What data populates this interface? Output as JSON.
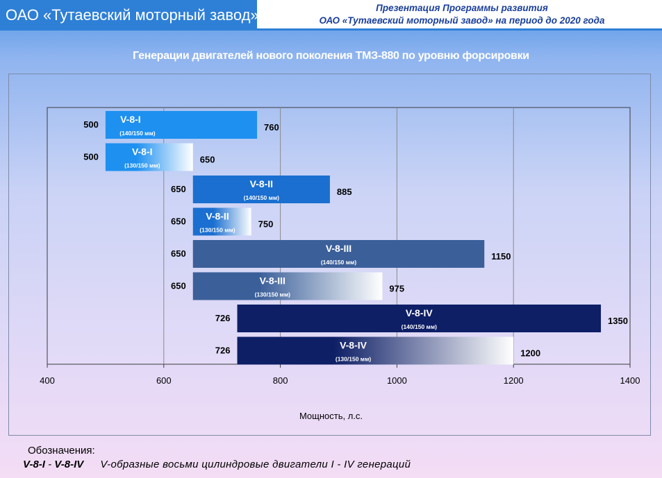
{
  "header": {
    "company": "ОАО «Тутаевский моторный завод»",
    "presentation_line1": "Презентация Программы развития",
    "presentation_line2": "ОАО «Тутаевский моторный завод» на период до 2020 года"
  },
  "chart_data": {
    "type": "bar",
    "orientation": "horizontal",
    "title": "Генерации двигателей нового поколения ТМЗ-880 по уровню форсировки",
    "xlabel": "Мощность, л.с.",
    "xlim": [
      400,
      1400
    ],
    "xticks": [
      400,
      600,
      800,
      1000,
      1200,
      1400
    ],
    "grid": "vertical",
    "bars": [
      {
        "name": "V-8-I",
        "sub": "(140/150 мм)",
        "start": 500,
        "end": 760,
        "start_label": "500",
        "end_label": "760",
        "color": "#1e90f0",
        "fade": false
      },
      {
        "name": "V-8-I",
        "sub": "(130/150 мм)",
        "start": 500,
        "end": 650,
        "start_label": "500",
        "end_label": "650",
        "color": "#1e90f0",
        "fade": true
      },
      {
        "name": "V-8-II",
        "sub": "(140/150 мм)",
        "start": 650,
        "end": 885,
        "start_label": "650",
        "end_label": "885",
        "color": "#1a6fd0",
        "fade": false
      },
      {
        "name": "V-8-II",
        "sub": "(130/150 мм)",
        "start": 650,
        "end": 750,
        "start_label": "650",
        "end_label": "750",
        "color": "#1a6fd0",
        "fade": true
      },
      {
        "name": "V-8-III",
        "sub": "(140/150 мм)",
        "start": 650,
        "end": 1150,
        "start_label": "650",
        "end_label": "1150",
        "color": "#3b5f99",
        "fade": false
      },
      {
        "name": "V-8-III",
        "sub": "(130/150 мм)",
        "start": 650,
        "end": 975,
        "start_label": "650",
        "end_label": "975",
        "color": "#3b5f99",
        "fade": true
      },
      {
        "name": "V-8-IV",
        "sub": "(140/150 мм)",
        "start": 726,
        "end": 1350,
        "start_label": "726",
        "end_label": "1350",
        "color": "#0e1f66",
        "fade": false
      },
      {
        "name": "V-8-IV",
        "sub": "(130/150 мм)",
        "start": 726,
        "end": 1200,
        "start_label": "726",
        "end_label": "1200",
        "color": "#0e1f66",
        "fade": true
      }
    ]
  },
  "legend": {
    "heading": "Обозначения:",
    "abbr_from": "V-8-I",
    "dash": "-",
    "abbr_to": "V-8-IV",
    "description": "V-образные восьми цилиндровые двигатели  I - IV  генераций"
  }
}
